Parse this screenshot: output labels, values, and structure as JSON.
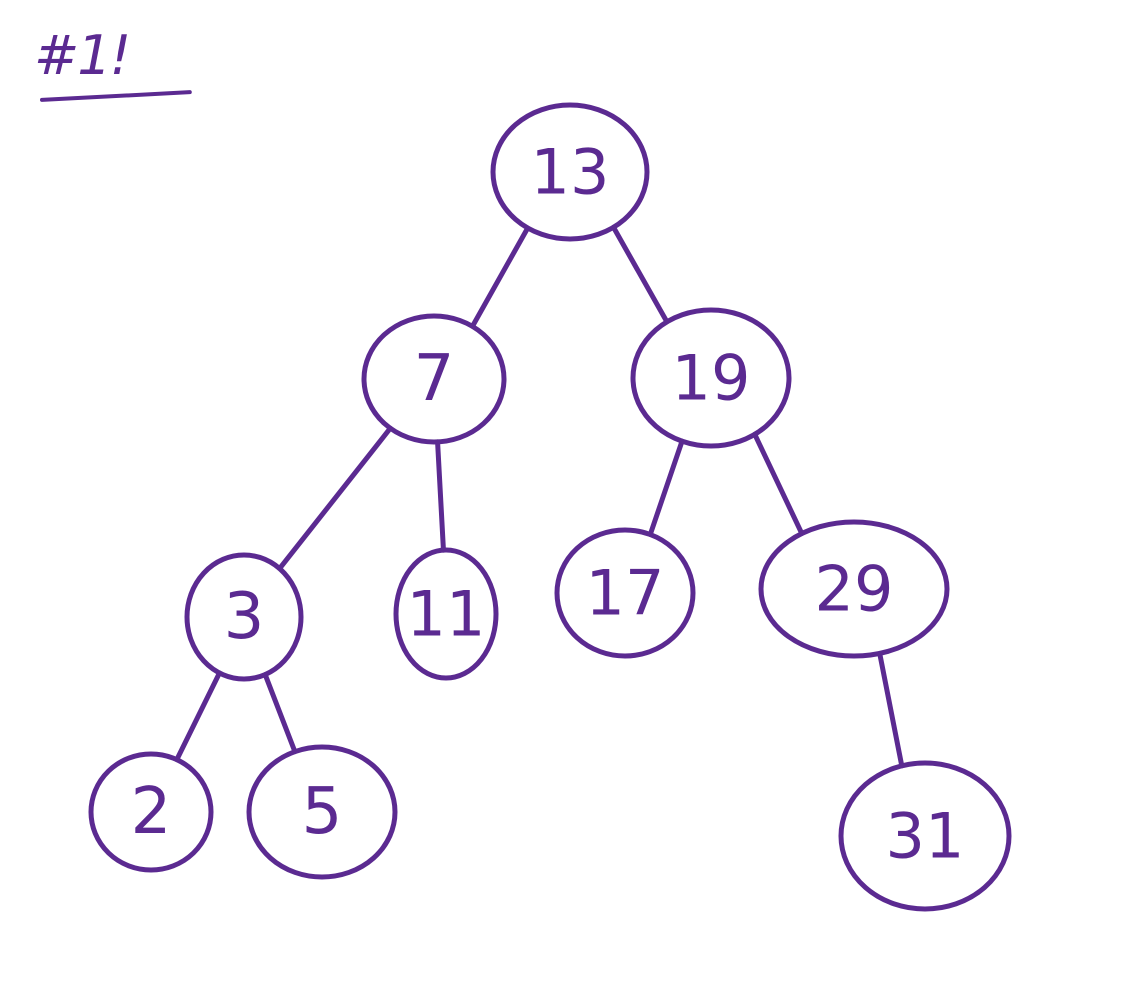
{
  "heading": "#1!",
  "colors": {
    "ink": "#5b2a91",
    "background": "#ffffff"
  },
  "tree": {
    "root": {
      "value": "13",
      "left": {
        "value": "7",
        "left": {
          "value": "3",
          "left": {
            "value": "2"
          },
          "right": {
            "value": "5"
          }
        },
        "right": {
          "value": "11"
        }
      },
      "right": {
        "value": "19",
        "left": {
          "value": "17"
        },
        "right": {
          "value": "29",
          "right": {
            "value": "31"
          }
        }
      }
    }
  }
}
